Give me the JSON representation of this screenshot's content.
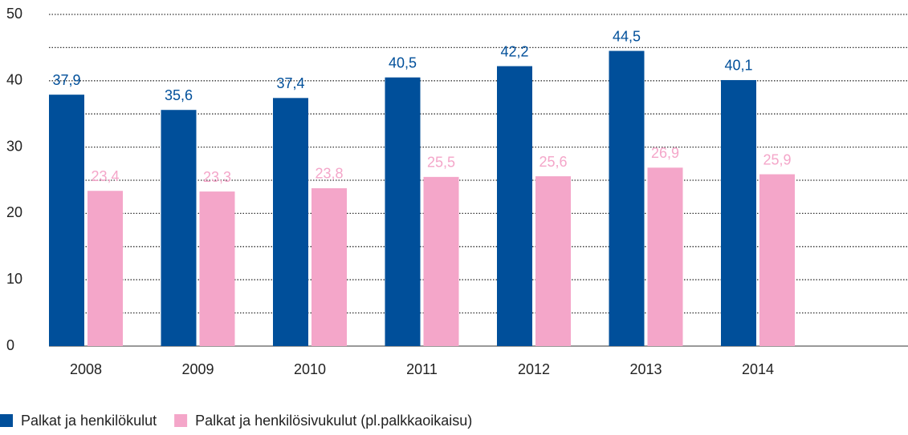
{
  "chart_data": {
    "type": "bar",
    "categories": [
      "2008",
      "2009",
      "2010",
      "2011",
      "2012",
      "2013",
      "2014"
    ],
    "series": [
      {
        "name": "Palkat ja henkilökulut",
        "color": "#004f9a",
        "values": [
          37.9,
          35.6,
          37.4,
          40.5,
          42.2,
          44.5,
          40.1
        ],
        "value_labels": [
          "37,9",
          "35,6",
          "37,4",
          "40,5",
          "42,2",
          "44,5",
          "40,1"
        ]
      },
      {
        "name": "Palkat ja henkilösivukulut (pl.palkkaoikaisu)",
        "color": "#f4a6c9",
        "values": [
          23.4,
          23.3,
          23.8,
          25.5,
          25.6,
          26.9,
          25.9
        ],
        "value_labels": [
          "23,4",
          "23,3",
          "23,8",
          "25,5",
          "25,6",
          "26,9",
          "25,9"
        ]
      }
    ],
    "ylim": [
      0,
      50
    ],
    "yticks": [
      0,
      10,
      20,
      30,
      40,
      50
    ],
    "minor_yticks": [
      5,
      15,
      25,
      35,
      45
    ],
    "grid": true
  }
}
